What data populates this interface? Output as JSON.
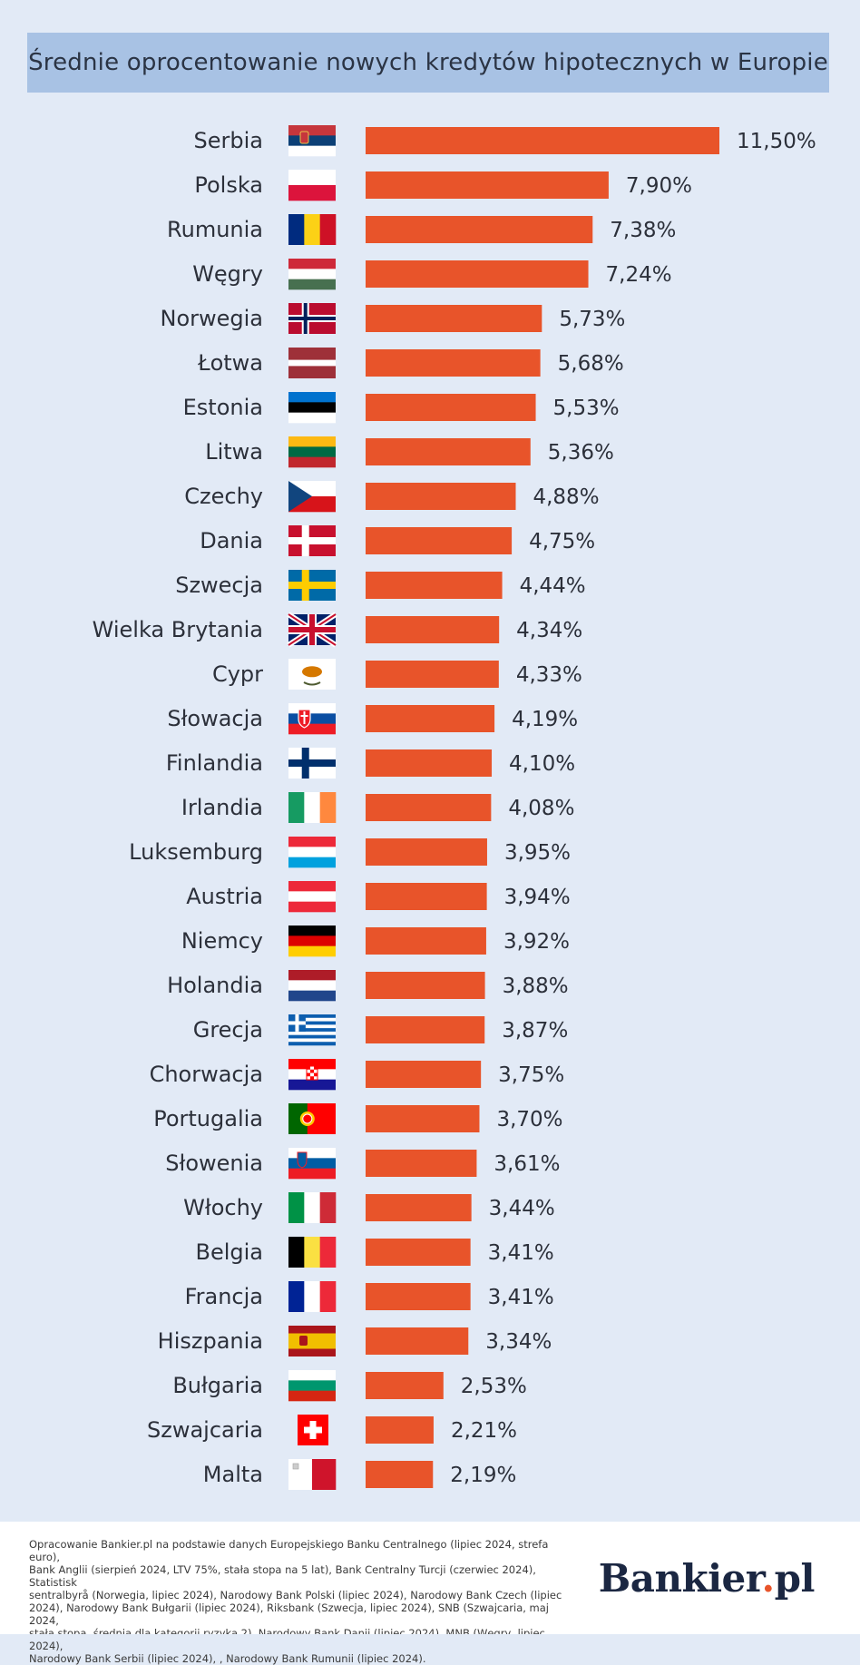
{
  "title": "Średnie oprocentowanie nowych kredytów hipotecznych w Europie",
  "chart_data": {
    "type": "bar",
    "orientation": "horizontal",
    "title": "Średnie oprocentowanie nowych kredytów hipotecznych w Europie",
    "xlabel": "",
    "ylabel": "",
    "bar_color": "#e8542a",
    "categories": [
      "Serbia",
      "Polska",
      "Rumunia",
      "Węgry",
      "Norwegia",
      "Łotwa",
      "Estonia",
      "Litwa",
      "Czechy",
      "Dania",
      "Szwecja",
      "Wielka Brytania",
      "Cypr",
      "Słowacja",
      "Finlandia",
      "Irlandia",
      "Luksemburg",
      "Austria",
      "Niemcy",
      "Holandia",
      "Grecja",
      "Chorwacja",
      "Portugalia",
      "Słowenia",
      "Włochy",
      "Belgia",
      "Francja",
      "Hiszpania",
      "Bułgaria",
      "Szwajcaria",
      "Malta"
    ],
    "values": [
      11.5,
      7.9,
      7.38,
      7.24,
      5.73,
      5.68,
      5.53,
      5.36,
      4.88,
      4.75,
      4.44,
      4.34,
      4.33,
      4.19,
      4.1,
      4.08,
      3.95,
      3.94,
      3.92,
      3.88,
      3.87,
      3.75,
      3.7,
      3.61,
      3.44,
      3.41,
      3.41,
      3.34,
      2.53,
      2.21,
      2.19
    ],
    "value_labels": [
      "11,50%",
      "7,90%",
      "7,38%",
      "7,24%",
      "5,73%",
      "5,68%",
      "5,53%",
      "5,36%",
      "4,88%",
      "4,75%",
      "4,44%",
      "4,34%",
      "4,33%",
      "4,19%",
      "4,10%",
      "4,08%",
      "3,95%",
      "3,94%",
      "3,92%",
      "3,88%",
      "3,87%",
      "3,75%",
      "3,70%",
      "3,61%",
      "3,44%",
      "3,41%",
      "3,41%",
      "3,34%",
      "2,53%",
      "2,21%",
      "2,19%"
    ],
    "flags": [
      "serbia-flag-icon",
      "poland-flag-icon",
      "romania-flag-icon",
      "hungary-flag-icon",
      "norway-flag-icon",
      "latvia-flag-icon",
      "estonia-flag-icon",
      "lithuania-flag-icon",
      "czechia-flag-icon",
      "denmark-flag-icon",
      "sweden-flag-icon",
      "uk-flag-icon",
      "cyprus-flag-icon",
      "slovakia-flag-icon",
      "finland-flag-icon",
      "ireland-flag-icon",
      "luxembourg-flag-icon",
      "austria-flag-icon",
      "germany-flag-icon",
      "netherlands-flag-icon",
      "greece-flag-icon",
      "croatia-flag-icon",
      "portugal-flag-icon",
      "slovenia-flag-icon",
      "italy-flag-icon",
      "belgium-flag-icon",
      "france-flag-icon",
      "spain-flag-icon",
      "bulgaria-flag-icon",
      "switzerland-flag-icon",
      "malta-flag-icon"
    ],
    "grid": false,
    "legend": "none"
  },
  "footer": {
    "source_lines": [
      "Opracowanie Bankier.pl na podstawie danych Europejskiego Banku Centralnego (lipiec 2024, strefa euro),",
      "Bank Anglii (sierpień 2024, LTV 75%, stała stopa na 5 lat), Bank Centralny Turcji (czerwiec 2024), Statistisk",
      "sentralbyrå (Norwegia, lipiec 2024), Narodowy Bank Polski (lipiec 2024), Narodowy Bank Czech (lipiec",
      "2024), Narodowy Bank Bułgarii (lipiec 2024), Riksbank (Szwecja, lipiec 2024), SNB (Szwajcaria, maj 2024,",
      "stała stopa, średnia dla kategorii ryzyka 2), Narodowy Bank Danii (lipiec 2024), MNB (Węgry, lipiec 2024),",
      "Narodowy Bank Serbii (lipiec 2024), , Narodowy Bank Rumunii (lipiec 2024)."
    ],
    "logo_main": "Bankier",
    "logo_dot": ".",
    "logo_suffix": "pl"
  }
}
